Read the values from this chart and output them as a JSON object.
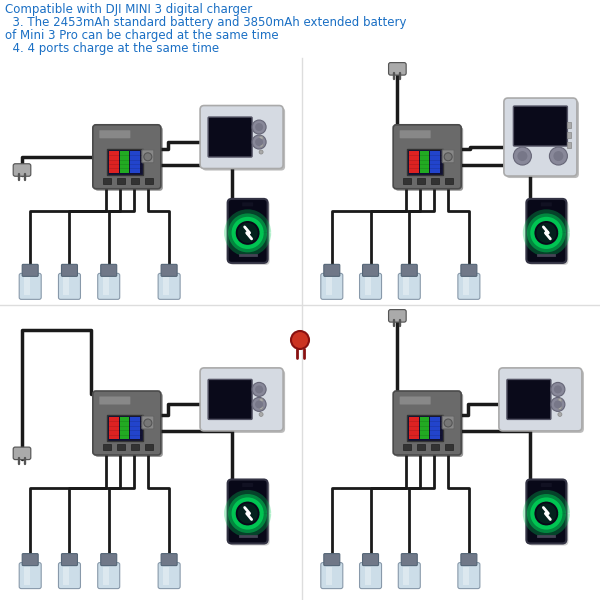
{
  "background_color": "#ffffff",
  "title_lines": [
    "Compatible with DJI MINI 3 digital charger",
    "  3. The 2453mAh standard battery and 3850mAh extended battery",
    "of Mini 3 Pro can be charged at the same time",
    "  4. 4 ports charge at the same time"
  ],
  "title_color": "#1a6fc4",
  "title_fontsize": 8.5,
  "charger_body_color": "#6a6a6a",
  "charger_dark": "#4a4a4a",
  "screen_bg": "#111133",
  "panel_colors": [
    "#dd2222",
    "#22aa22",
    "#2244cc"
  ],
  "battery_body": "#c8d8e8",
  "battery_cap": "#707888",
  "wire_color": "#1a1a1a",
  "plug_color": "#555555",
  "plug_body": "#aaaaaa",
  "phone_bg": "#080818",
  "phone_frame": "#222222",
  "phone_ring": "#00cc55",
  "phone_ring2": "#009944",
  "remote_body": "#d5dae2",
  "remote_screen": "#0a0a1a",
  "remote_joystick": "#888899",
  "red_plug_color": "#cc2222",
  "fig_width": 6.0,
  "fig_height": 6.0,
  "dpi": 100
}
